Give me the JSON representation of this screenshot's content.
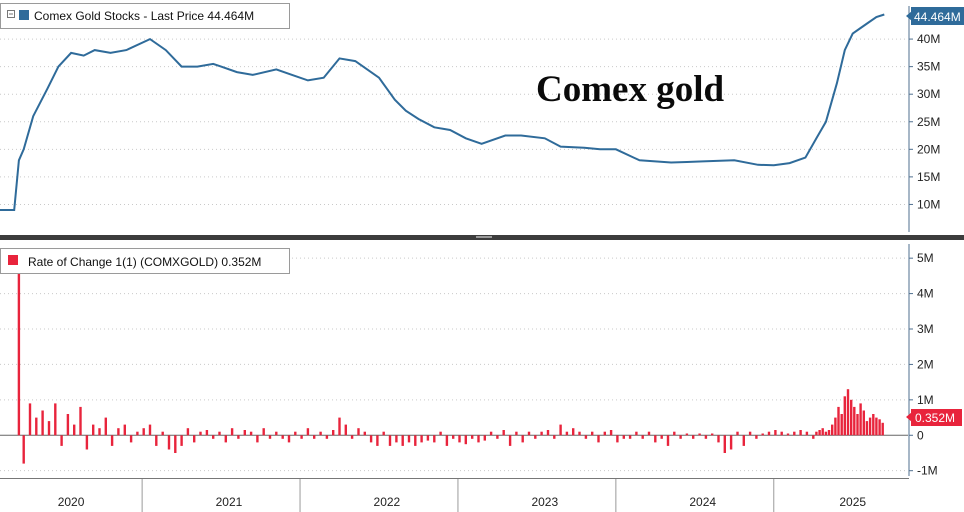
{
  "chart_data": [
    {
      "type": "line",
      "legend": "Comex Gold Stocks - Last Price 44.464M",
      "last_value_label": "44.464M",
      "annotation": "Comex gold",
      "y_ticks": [
        "10M",
        "15M",
        "20M",
        "25M",
        "30M",
        "35M",
        "40M"
      ],
      "y_tick_values": [
        10,
        15,
        20,
        25,
        30,
        35,
        40
      ],
      "ylim": [
        5,
        46
      ],
      "x_range": [
        2019.55,
        2025.3
      ],
      "color": "#2f6b9a",
      "series": [
        {
          "x": [
            2019.55,
            2019.64,
            2019.67,
            2019.7,
            2019.76,
            2019.85,
            2019.92,
            2020.0,
            2020.08,
            2020.15,
            2020.25,
            2020.35,
            2020.5,
            2020.6,
            2020.7,
            2020.8,
            2020.9,
            2020.95,
            2021.05,
            2021.15,
            2021.3,
            2021.4,
            2021.5,
            2021.6,
            2021.7,
            2021.8,
            2021.95,
            2022.0,
            2022.05,
            2022.12,
            2022.2,
            2022.3,
            2022.4,
            2022.5,
            2022.6,
            2022.75,
            2022.85,
            2023.0,
            2023.1,
            2023.25,
            2023.35,
            2023.45,
            2023.6,
            2023.7,
            2023.8,
            2023.9,
            2024.0,
            2024.2,
            2024.35,
            2024.45,
            2024.55,
            2024.65,
            2024.72,
            2024.78,
            2024.85,
            2024.9,
            2024.95,
            2025.0,
            2025.05,
            2025.1,
            2025.15
          ],
          "y": [
            9,
            9,
            18,
            20,
            26,
            31,
            35,
            37.5,
            37,
            38,
            37.5,
            38,
            40,
            38,
            35,
            35,
            35.5,
            35,
            34,
            33.5,
            34.5,
            33.5,
            32.5,
            33,
            36.5,
            36,
            33,
            31,
            29,
            27,
            25.5,
            24,
            23.5,
            22,
            21,
            22.5,
            22.5,
            22,
            20.5,
            20.3,
            20,
            20,
            18,
            17.8,
            17.6,
            17.7,
            17.8,
            18,
            17.2,
            17.1,
            17.5,
            18.5,
            22,
            25,
            32,
            38,
            41,
            42,
            43,
            44,
            44.464
          ]
        }
      ]
    },
    {
      "type": "bar",
      "legend": "Rate of Change 1(1) (COMXGOLD) 0.352M",
      "last_value_label": "0.352M",
      "y_ticks": [
        "-1M",
        "0",
        "1M",
        "2M",
        "3M",
        "4M",
        "5M"
      ],
      "y_tick_values": [
        -1,
        0,
        1,
        2,
        3,
        4,
        5
      ],
      "ylim": [
        -1.15,
        5.4
      ],
      "x_range": [
        2019.55,
        2025.3
      ],
      "color": "#e8243c",
      "series": [
        {
          "x": [
            2019.67,
            2019.7,
            2019.74,
            2019.78,
            2019.82,
            2019.86,
            2019.9,
            2019.94,
            2019.98,
            2020.02,
            2020.06,
            2020.1,
            2020.14,
            2020.18,
            2020.22,
            2020.26,
            2020.3,
            2020.34,
            2020.38,
            2020.42,
            2020.46,
            2020.5,
            2020.54,
            2020.58,
            2020.62,
            2020.66,
            2020.7,
            2020.74,
            2020.78,
            2020.82,
            2020.86,
            2020.9,
            2020.94,
            2020.98,
            2021.02,
            2021.06,
            2021.1,
            2021.14,
            2021.18,
            2021.22,
            2021.26,
            2021.3,
            2021.34,
            2021.38,
            2021.42,
            2021.46,
            2021.5,
            2021.54,
            2021.58,
            2021.62,
            2021.66,
            2021.7,
            2021.74,
            2021.78,
            2021.82,
            2021.86,
            2021.9,
            2021.94,
            2021.98,
            2022.02,
            2022.06,
            2022.1,
            2022.14,
            2022.18,
            2022.22,
            2022.26,
            2022.3,
            2022.34,
            2022.38,
            2022.42,
            2022.46,
            2022.5,
            2022.54,
            2022.58,
            2022.62,
            2022.66,
            2022.7,
            2022.74,
            2022.78,
            2022.82,
            2022.86,
            2022.9,
            2022.94,
            2022.98,
            2023.02,
            2023.06,
            2023.1,
            2023.14,
            2023.18,
            2023.22,
            2023.26,
            2023.3,
            2023.34,
            2023.38,
            2023.42,
            2023.46,
            2023.5,
            2023.54,
            2023.58,
            2023.62,
            2023.66,
            2023.7,
            2023.74,
            2023.78,
            2023.82,
            2023.86,
            2023.9,
            2023.94,
            2023.98,
            2024.02,
            2024.06,
            2024.1,
            2024.14,
            2024.18,
            2024.22,
            2024.26,
            2024.3,
            2024.34,
            2024.38,
            2024.42,
            2024.46,
            2024.5,
            2024.54,
            2024.58,
            2024.62,
            2024.66,
            2024.7,
            2024.72,
            2024.74,
            2024.76,
            2024.78,
            2024.8,
            2024.82,
            2024.84,
            2024.86,
            2024.88,
            2024.9,
            2024.92,
            2024.94,
            2024.96,
            2024.98,
            2025.0,
            2025.02,
            2025.04,
            2025.06,
            2025.08,
            2025.1,
            2025.12,
            2025.14
          ],
          "y": [
            5.2,
            -0.8,
            0.9,
            0.5,
            0.7,
            0.4,
            0.9,
            -0.3,
            0.6,
            0.3,
            0.8,
            -0.4,
            0.3,
            0.2,
            0.5,
            -0.3,
            0.2,
            0.3,
            -0.2,
            0.1,
            0.2,
            0.3,
            -0.3,
            0.1,
            -0.4,
            -0.5,
            -0.3,
            0.2,
            -0.2,
            0.1,
            0.15,
            -0.1,
            0.1,
            -0.2,
            0.2,
            -0.1,
            0.15,
            0.1,
            -0.2,
            0.2,
            -0.1,
            0.1,
            -0.1,
            -0.2,
            0.1,
            -0.1,
            0.2,
            -0.1,
            0.1,
            -0.1,
            0.15,
            0.5,
            0.3,
            -0.1,
            0.2,
            0.1,
            -0.2,
            -0.3,
            0.1,
            -0.3,
            -0.2,
            -0.3,
            -0.2,
            -0.3,
            -0.2,
            -0.15,
            -0.2,
            0.1,
            -0.3,
            -0.1,
            -0.2,
            -0.25,
            -0.1,
            -0.2,
            -0.15,
            0.1,
            -0.1,
            0.15,
            -0.3,
            0.1,
            -0.2,
            0.1,
            -0.1,
            0.1,
            0.15,
            -0.1,
            0.3,
            0.1,
            0.2,
            0.1,
            -0.1,
            0.1,
            -0.2,
            0.1,
            0.15,
            -0.2,
            -0.1,
            -0.1,
            0.1,
            -0.1,
            0.1,
            -0.2,
            -0.1,
            -0.3,
            0.1,
            -0.1,
            0.05,
            -0.1,
            0.05,
            -0.1,
            0.05,
            -0.2,
            -0.5,
            -0.4,
            0.1,
            -0.3,
            0.1,
            -0.1,
            0.05,
            0.1,
            0.15,
            0.1,
            0.05,
            0.1,
            0.15,
            0.1,
            -0.1,
            0.1,
            0.15,
            0.2,
            0.1,
            0.15,
            0.3,
            0.5,
            0.8,
            0.6,
            1.1,
            1.3,
            1.0,
            0.8,
            0.6,
            0.9,
            0.7,
            0.4,
            0.5,
            0.6,
            0.5,
            0.45,
            0.352
          ]
        }
      ]
    }
  ],
  "x_axis": {
    "labels": [
      "2020",
      "2021",
      "2022",
      "2023",
      "2024",
      "2025"
    ],
    "label_positions": [
      2020.0,
      2021.0,
      2022.0,
      2023.0,
      2024.0,
      2024.95
    ],
    "year_boundaries": [
      2020.45,
      2021.45,
      2022.45,
      2023.45,
      2024.45
    ]
  }
}
